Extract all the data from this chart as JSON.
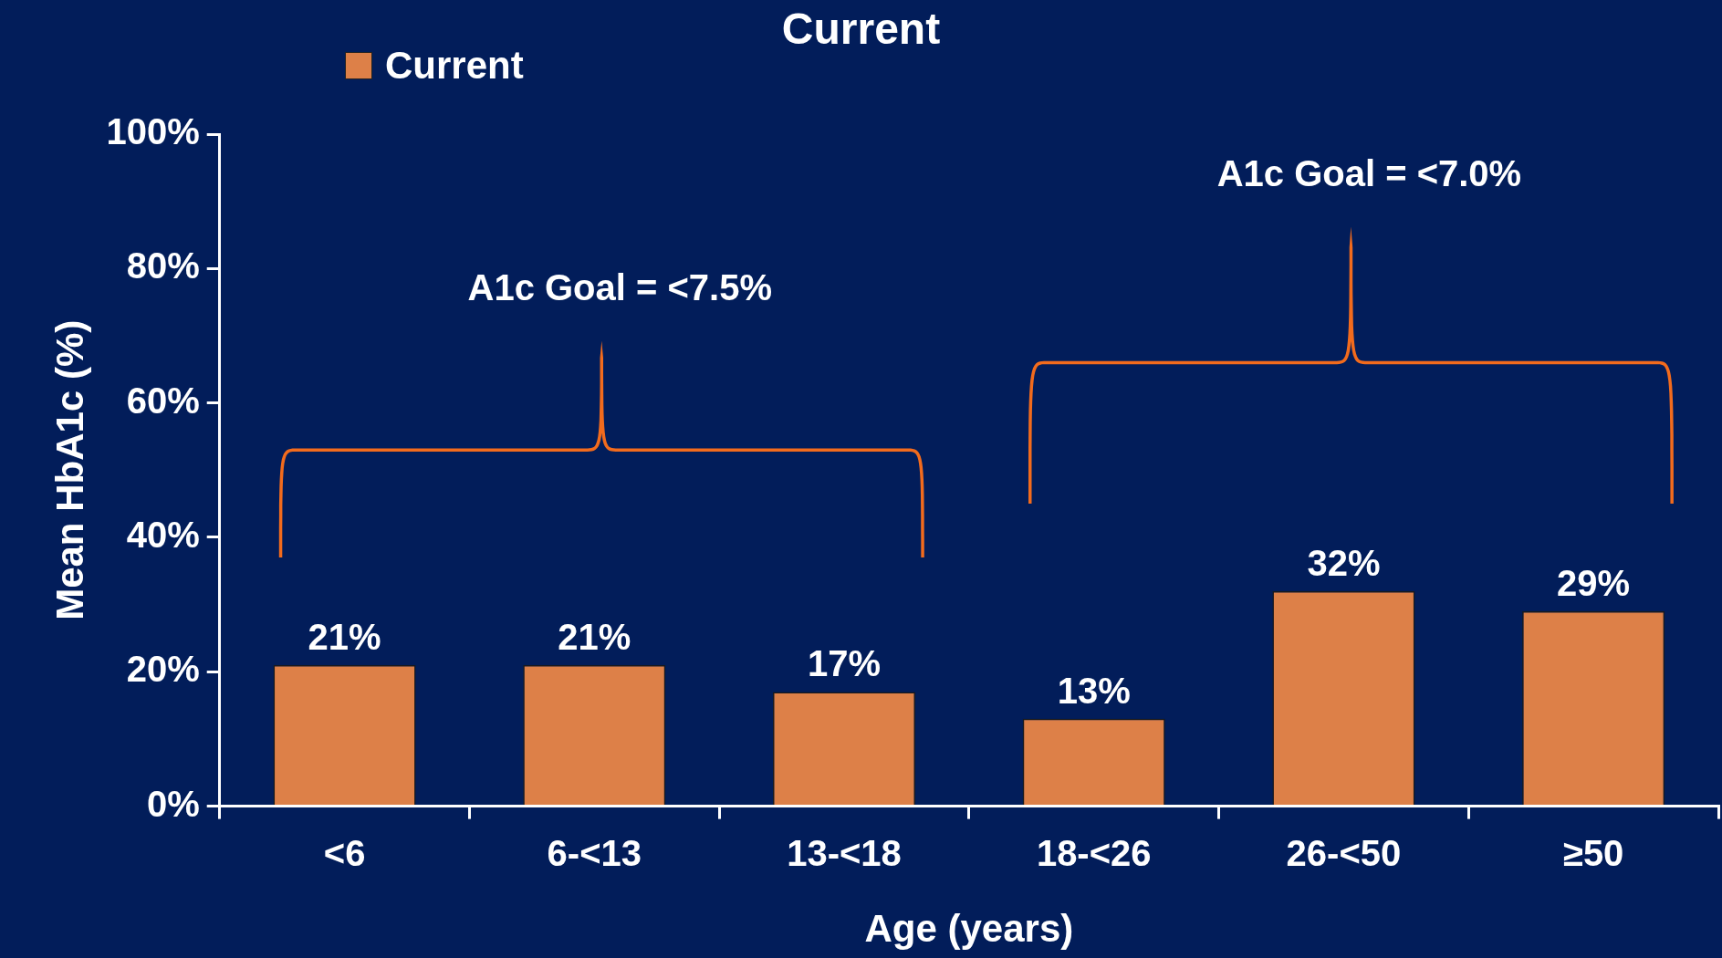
{
  "chart_data": {
    "type": "bar",
    "title": "Current",
    "xlabel": "Age (years)",
    "ylabel": "Mean HbA1c (%)",
    "categories": [
      "<6",
      "6-<13",
      "13-<18",
      "18-<26",
      "26-<50",
      "≥50"
    ],
    "series": [
      {
        "name": "Current",
        "color": "#dd8048",
        "values": [
          21,
          21,
          17,
          13,
          32,
          29
        ],
        "value_labels": [
          "21%",
          "21%",
          "17%",
          "13%",
          "32%",
          "29%"
        ]
      }
    ],
    "ylim": [
      0,
      100
    ],
    "yticks": [
      {
        "value": 0,
        "label": "0%"
      },
      {
        "value": 20,
        "label": "20%"
      },
      {
        "value": 40,
        "label": "40%"
      },
      {
        "value": 60,
        "label": "60%"
      },
      {
        "value": 80,
        "label": "80%"
      },
      {
        "value": 100,
        "label": "100%"
      }
    ],
    "annotations": [
      "A1c Goal = <7.5%",
      "A1c Goal = <7.0%"
    ],
    "grid": false,
    "legend": "top left"
  }
}
